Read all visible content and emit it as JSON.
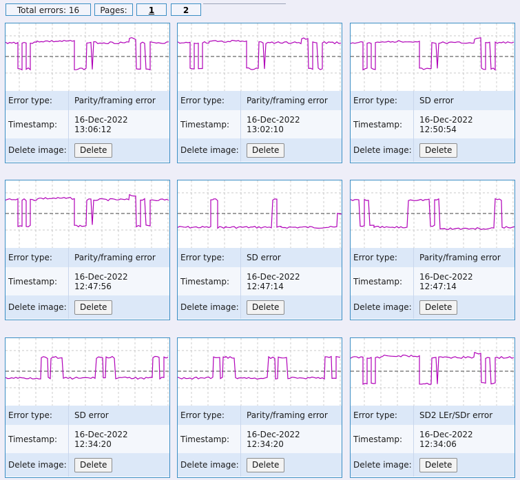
{
  "toolbar": {
    "total_errors_label": "Total errors: 16",
    "pages_label": "Pages:",
    "pages": [
      "1",
      "2"
    ],
    "current_page": "1"
  },
  "labels": {
    "error_type": "Error type:",
    "timestamp": "Timestamp:",
    "delete_image": "Delete image:",
    "delete_button": "Delete"
  },
  "colors": {
    "trace": "#b000b8",
    "reference_line": "#404040",
    "grid": "#b8b8b8",
    "card_border": "#3b8ec4"
  },
  "cards": [
    {
      "error_type": "Parity/framing error",
      "timestamp": "16-Dec-2022\n13:06:12",
      "waveform": "parity"
    },
    {
      "error_type": "Parity/framing error",
      "timestamp": "16-Dec-2022\n13:02:10",
      "waveform": "parity"
    },
    {
      "error_type": "SD error",
      "timestamp": "16-Dec-2022\n12:50:54",
      "waveform": "parity"
    },
    {
      "error_type": "Parity/framing error",
      "timestamp": "16-Dec-2022\n12:47:56",
      "waveform": "parity"
    },
    {
      "error_type": "SD error",
      "timestamp": "16-Dec-2022\n12:47:14",
      "waveform": "sd_low"
    },
    {
      "error_type": "Parity/framing error",
      "timestamp": "16-Dec-2022\n12:47:14",
      "waveform": "parity_decay"
    },
    {
      "error_type": "SD error",
      "timestamp": "16-Dec-2022\n12:34:20",
      "waveform": "pulses"
    },
    {
      "error_type": "Parity/framing error",
      "timestamp": "16-Dec-2022\n12:34:20",
      "waveform": "pulses"
    },
    {
      "error_type": "SD2 LEr/SDr error",
      "timestamp": "16-Dec-2022\n12:34:06",
      "waveform": "parity"
    }
  ]
}
